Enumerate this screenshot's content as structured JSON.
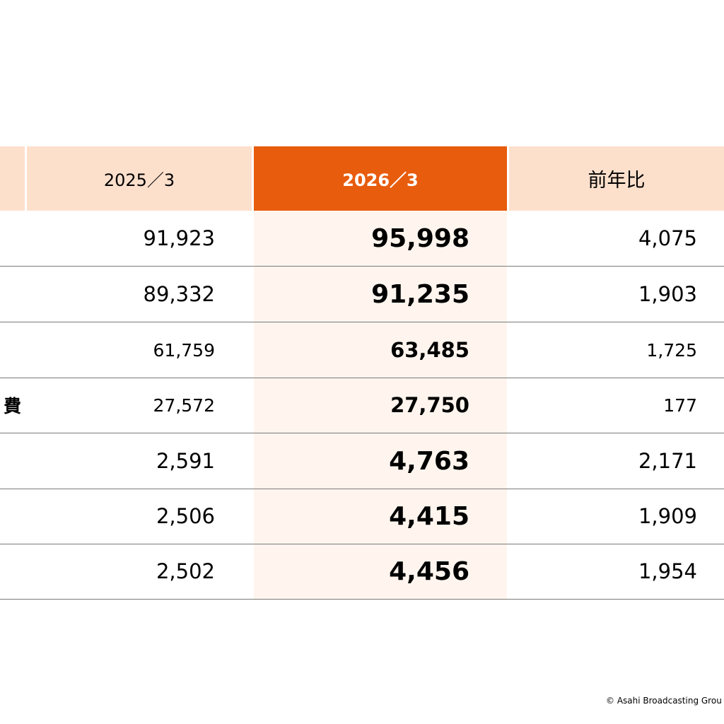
{
  "table": {
    "headers": {
      "label": "",
      "prev": "2025／3",
      "curr": "2026／3",
      "yoy": "前年比"
    },
    "rows": [
      {
        "label": "",
        "prev": "91,923",
        "curr": "95,998",
        "yoy": "4,075"
      },
      {
        "label": "",
        "prev": "89,332",
        "curr": "91,235",
        "yoy": "1,903"
      },
      {
        "label": "",
        "prev": "61,759",
        "curr": "63,485",
        "yoy": "1,725"
      },
      {
        "label": "費",
        "prev": "27,572",
        "curr": "27,750",
        "yoy": "177"
      },
      {
        "label": "",
        "prev": "2,591",
        "curr": "4,763",
        "yoy": "2,171"
      },
      {
        "label": "",
        "prev": "2,506",
        "curr": "4,415",
        "yoy": "1,909"
      },
      {
        "label": "",
        "prev": "2,502",
        "curr": "4,456",
        "yoy": "1,954"
      }
    ]
  },
  "footer": {
    "copyright": "© Asahi Broadcasting Grou"
  },
  "colors": {
    "header_bg": "#fde0cc",
    "accent": "#e85c0d",
    "highlight_band": "#fff5ee"
  }
}
